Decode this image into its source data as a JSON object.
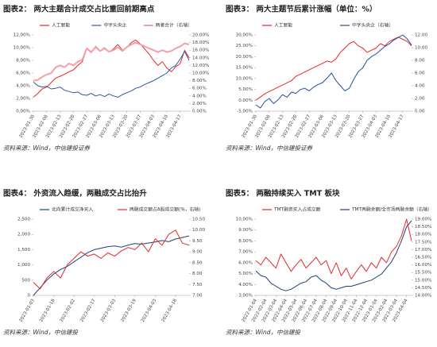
{
  "chart_data": [
    {
      "type": "line",
      "title": "图表2： 两大主题合计成交占比重回前期高点",
      "source": "资料来源：Wind，中信建投证券",
      "categories": [
        "2023-01-30",
        null,
        null,
        "2023-02-06",
        null,
        null,
        "2023-02-13",
        null,
        null,
        "2023-02-20",
        null,
        null,
        "2023-02-27",
        null,
        null,
        "2023-03-06",
        null,
        null,
        "2023-03-13",
        null,
        null,
        "2023-03-20",
        null,
        null,
        "2023-03-27",
        null,
        null,
        "2023-04-03",
        null,
        null,
        "2023-04-10",
        null,
        null,
        "2023-04-17",
        null,
        null
      ],
      "series": [
        {
          "name": "人工智能",
          "color": "#e8282a",
          "values": [
            2.2,
            2.8,
            3.5,
            3.8,
            4.5,
            5.2,
            5.5,
            5.8,
            6.2,
            6.5,
            7.2,
            7.8,
            9.8,
            9.2,
            10.2,
            9.5,
            10.0,
            9.3,
            9.8,
            10.5,
            9.6,
            10.0,
            10.8,
            11.2,
            10.6,
            9.8,
            9.0,
            8.0,
            7.2,
            7.8,
            6.8,
            6.2,
            7.0,
            7.5,
            9.6,
            8.4
          ]
        },
        {
          "name": "中字头央企",
          "color": "#2a5aa0",
          "values": [
            4.6,
            4.0,
            3.8,
            3.9,
            3.5,
            3.6,
            3.8,
            3.3,
            3.1,
            2.9,
            3.0,
            2.6,
            2.5,
            2.8,
            2.4,
            2.6,
            2.3,
            2.7,
            2.4,
            2.2,
            2.6,
            2.9,
            3.2,
            3.6,
            3.8,
            4.2,
            4.5,
            4.8,
            5.2,
            5.6,
            6.0,
            6.8,
            7.2,
            8.2,
            9.4,
            8.0
          ]
        },
        {
          "name": "两者合计（右轴）",
          "color": "#f4a0a8",
          "axis": "y2",
          "values": [
            8.0,
            8.2,
            9.0,
            9.6,
            10.0,
            11.5,
            12.0,
            11.5,
            12.5,
            12.0,
            13.0,
            13.5,
            16.5,
            15.5,
            16.8,
            15.8,
            16.5,
            15.6,
            16.0,
            16.8,
            15.8,
            16.8,
            17.5,
            18.0,
            17.5,
            17.0,
            16.5,
            16.0,
            15.5,
            16.0,
            15.5,
            15.8,
            16.5,
            17.0,
            17.8,
            17.5
          ]
        }
      ],
      "ylim": [
        0,
        12
      ],
      "yticks": [
        {
          "value": 0,
          "label": "0.00%"
        },
        {
          "value": 2,
          "label": "2.00%"
        },
        {
          "value": 4,
          "label": "4.00%"
        },
        {
          "value": 6,
          "label": "6.00%"
        },
        {
          "value": 8,
          "label": "8.00%"
        },
        {
          "value": 10,
          "label": "10.00%"
        },
        {
          "value": 12,
          "label": "12.00%"
        }
      ],
      "y2lim": [
        0,
        20
      ],
      "y2ticks": [
        {
          "value": 0,
          "label": "0.00%"
        },
        {
          "value": 2,
          "label": "2.00%"
        },
        {
          "value": 4,
          "label": "4.00%"
        },
        {
          "value": 6,
          "label": "6.00%"
        },
        {
          "value": 8,
          "label": "8.00%"
        },
        {
          "value": 10,
          "label": "10.00%"
        },
        {
          "value": 12,
          "label": "12.00%"
        },
        {
          "value": 14,
          "label": "14.00%"
        },
        {
          "value": 16,
          "label": "16.00%"
        },
        {
          "value": 18,
          "label": "18.00%"
        },
        {
          "value": 20,
          "label": "20.00%"
        }
      ],
      "grid": false
    },
    {
      "type": "line",
      "title": "图表3： 两大主题节后累计涨幅（单位：%）",
      "source": "资料来源：Wind，中信建投证券",
      "categories": [
        "2023-01-30",
        null,
        null,
        "2023-02-06",
        null,
        null,
        "2023-02-13",
        null,
        null,
        "2023-02-20",
        null,
        null,
        "2023-02-27",
        null,
        null,
        "2023-03-06",
        null,
        null,
        "2023-03-13",
        null,
        null,
        "2023-03-20",
        null,
        null,
        "2023-03-27",
        null,
        null,
        "2023-04-03",
        null,
        null,
        "2023-04-10",
        null,
        null,
        "2023-04-17",
        null,
        null
      ],
      "series": [
        {
          "name": "人工智能",
          "color": "#e8282a",
          "values": [
            0,
            1.5,
            3,
            4,
            5,
            6,
            7,
            8,
            9,
            11,
            12,
            13,
            14,
            15,
            16,
            17,
            18,
            17.5,
            19,
            22,
            24,
            26,
            27,
            25,
            24,
            22,
            23,
            24,
            26,
            25,
            27,
            28,
            29,
            28,
            27,
            25
          ]
        },
        {
          "name": "中字头央企（右轴）",
          "color": "#1f4e9a",
          "axis": "y2",
          "values": [
            1.0,
            0.5,
            1.5,
            2.0,
            1.2,
            1.8,
            2.6,
            2.2,
            3.0,
            2.8,
            3.4,
            3.6,
            3.2,
            3.8,
            4.2,
            4.5,
            5.2,
            6.0,
            4.8,
            4.0,
            3.2,
            3.6,
            5.0,
            6.2,
            6.8,
            8.0,
            8.6,
            9.0,
            9.6,
            10.2,
            10.6,
            11.2,
            11.6,
            12.0,
            11.4,
            10.4
          ]
        }
      ],
      "ylim": [
        -5,
        30
      ],
      "yticks": [
        {
          "value": -5,
          "label": "-5.00%"
        },
        {
          "value": 0,
          "label": "0.00%"
        },
        {
          "value": 5,
          "label": "5.00%"
        },
        {
          "value": 10,
          "label": "10.00%"
        },
        {
          "value": 15,
          "label": "15.00%"
        },
        {
          "value": 20,
          "label": "20.00%"
        },
        {
          "value": 25,
          "label": "25.00%"
        },
        {
          "value": 30,
          "label": "30.00%"
        }
      ],
      "y2lim": [
        0,
        12
      ],
      "y2ticks": [
        {
          "value": 0,
          "label": "0.00"
        },
        {
          "value": 2,
          "label": "2.00"
        },
        {
          "value": 4,
          "label": "4.00"
        },
        {
          "value": 6,
          "label": "6.00"
        },
        {
          "value": 8,
          "label": "8.00"
        },
        {
          "value": 10,
          "label": "10.00"
        },
        {
          "value": 12,
          "label": "12.00"
        }
      ],
      "grid": false
    },
    {
      "type": "line",
      "title": "图表4： 外资流入趋缓，两融成交占比抬升",
      "source": "资料来源：Wind，中信建投",
      "categories": [
        "2023-01-03",
        null,
        null,
        "2023-01-18",
        null,
        null,
        "2023-02-02",
        null,
        null,
        "2023-02-17",
        null,
        null,
        "2023-03-03",
        null,
        null,
        "2023-03-19",
        null,
        null,
        "2023-04-03",
        null,
        null,
        "2023-04-18",
        null,
        null
      ],
      "series": [
        {
          "name": "北向累计成交净买入",
          "color": "#1f3f7a",
          "values": [
            0,
            250,
            500,
            700,
            850,
            950,
            1100,
            1250,
            1400,
            1500,
            1550,
            1600,
            1620,
            1580,
            1650,
            1700,
            1680,
            1720,
            1750,
            1800,
            1760,
            1850,
            1900,
            1950
          ]
        },
        {
          "name": "两融成交额占A股成交额(%，右轴)",
          "color": "#e8282a",
          "axis": "y2",
          "values": [
            7.6,
            7.3,
            7.8,
            8.1,
            7.8,
            8.4,
            8.7,
            9.0,
            8.8,
            8.9,
            8.7,
            8.95,
            8.8,
            9.05,
            9.2,
            9.1,
            9.4,
            9.0,
            9.6,
            9.3,
            9.8,
            10.0,
            9.4,
            9.3
          ]
        }
      ],
      "ylim": [
        0,
        2500
      ],
      "yticks": [
        0,
        500,
        {
          "value": 1000,
          "label": "1,000"
        },
        {
          "value": 1500,
          "label": "1,500"
        },
        {
          "value": 2000,
          "label": "2,000"
        },
        {
          "value": 2500,
          "label": "2,500"
        }
      ],
      "y2lim": [
        7,
        10.5
      ],
      "y2ticks": [
        {
          "value": 7,
          "label": "7.00"
        },
        {
          "value": 7.5,
          "label": "7.50"
        },
        {
          "value": 8,
          "label": "8.00"
        },
        {
          "value": 8.5,
          "label": "8.50"
        },
        {
          "value": 9,
          "label": "9.00"
        },
        {
          "value": 9.5,
          "label": "9.50"
        },
        {
          "value": 10,
          "label": "10.00"
        },
        {
          "value": 10.5,
          "label": "10.50"
        }
      ],
      "grid": false
    },
    {
      "type": "line",
      "title": "图表5： 两融持续买入 TMT 板块",
      "source": "资料来源：Wind，中信建投",
      "categories": [
        "2022-01-04",
        null,
        "2022-02-04",
        null,
        "2022-03-04",
        null,
        "2022-04-04",
        null,
        "2022-05-04",
        null,
        "2022-06-04",
        null,
        "2022-07-04",
        null,
        "2022-08-04",
        null,
        "2022-09-04",
        null,
        "2022-10-04",
        null,
        "2022-11-04",
        null,
        "2022-12-04",
        null,
        "2023-01-04",
        null,
        "2023-02-04",
        null,
        "2023-03-04",
        null,
        "2023-04-04",
        null
      ],
      "series": [
        {
          "name": "TMT融资买入占成交额",
          "color": "#e8282a",
          "values": [
            6.2,
            5.8,
            6.5,
            6.0,
            5.5,
            6.8,
            6.0,
            5.2,
            5.8,
            6.3,
            5.5,
            6.0,
            6.5,
            5.8,
            6.2,
            5.0,
            6.0,
            4.8,
            5.5,
            4.5,
            5.2,
            5.8,
            5.2,
            6.0,
            5.5,
            6.5,
            6.0,
            7.0,
            7.5,
            8.5,
            10.0,
            8.0
          ]
        },
        {
          "name": "TMT两融余额/全市场两融余额（右轴）",
          "color": "#1f3f7a",
          "axis": "y2",
          "values": [
            15.6,
            15.3,
            15.2,
            14.8,
            14.6,
            14.4,
            14.3,
            14.4,
            14.6,
            14.8,
            14.9,
            15.2,
            15.3,
            15.0,
            14.8,
            14.5,
            14.4,
            14.5,
            14.6,
            14.6,
            14.7,
            14.8,
            14.9,
            15.0,
            15.2,
            15.4,
            15.8,
            16.2,
            16.8,
            17.6,
            18.5,
            18.9
          ]
        }
      ],
      "ylim": [
        3,
        10
      ],
      "yticks": [
        {
          "value": 3,
          "label": "3.00%"
        },
        {
          "value": 4,
          "label": "4.00%"
        },
        {
          "value": 5,
          "label": "5.00%"
        },
        {
          "value": 6,
          "label": "6.00%"
        },
        {
          "value": 7,
          "label": "7.00%"
        },
        {
          "value": 8,
          "label": "8.00%"
        },
        {
          "value": 9,
          "label": "9.00%"
        },
        {
          "value": 10,
          "label": "10.00%"
        }
      ],
      "y2lim": [
        14,
        19
      ],
      "y2ticks": [
        {
          "value": 14,
          "label": "14.00%"
        },
        {
          "value": 14.5,
          "label": "14.50%"
        },
        {
          "value": 15,
          "label": "15.00%"
        },
        {
          "value": 15.5,
          "label": "15.50%"
        },
        {
          "value": 16,
          "label": "16.00%"
        },
        {
          "value": 16.5,
          "label": "16.50%"
        },
        {
          "value": 17,
          "label": "17.00%"
        },
        {
          "value": 17.5,
          "label": "17.50%"
        },
        {
          "value": 18,
          "label": "18.00%"
        },
        {
          "value": 18.5,
          "label": "18.50%"
        },
        {
          "value": 19,
          "label": "19.00%"
        }
      ],
      "grid": false
    }
  ]
}
